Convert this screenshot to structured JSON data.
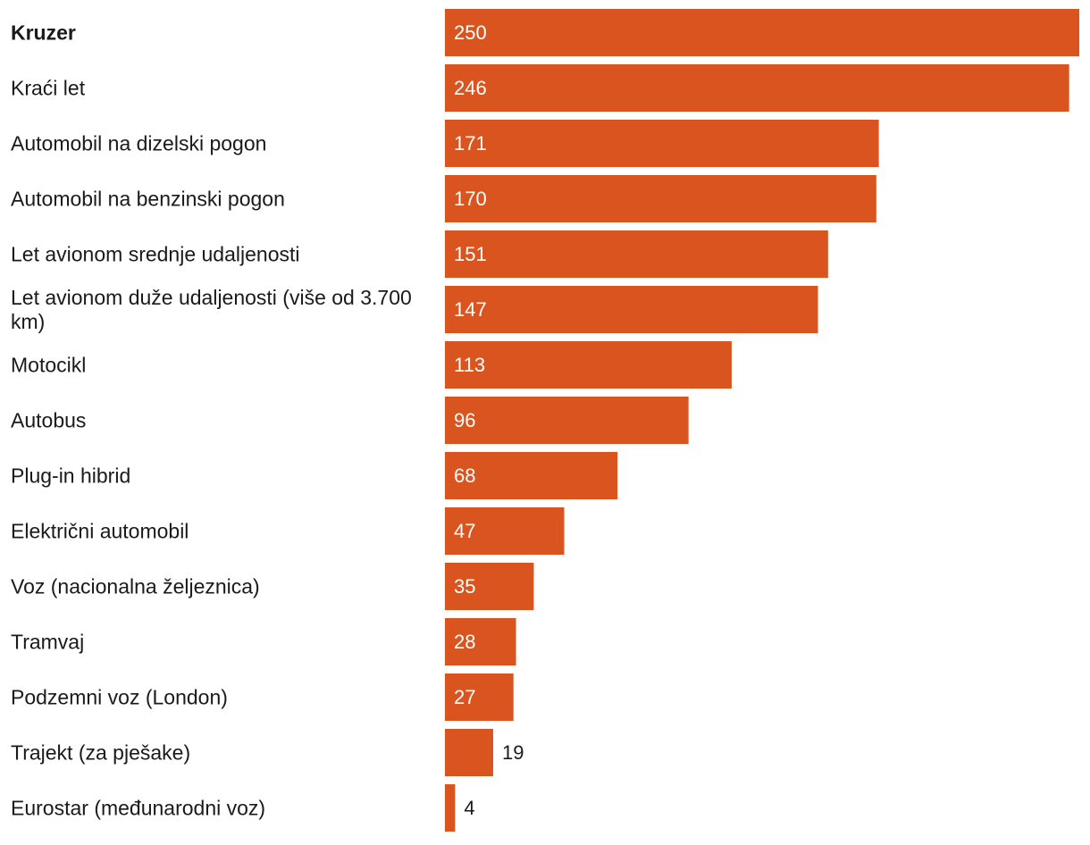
{
  "chart_data": {
    "type": "bar",
    "orientation": "horizontal",
    "title": "",
    "xlabel": "",
    "ylabel": "",
    "xlim": [
      0,
      250
    ],
    "grid": false,
    "bar_color": "#d9541e",
    "inside_label_color": "#ffffff",
    "outside_label_color": "#1a1a1a",
    "highlighted_category": "Kruzer",
    "categories": [
      "Kruzer",
      "Kraći let",
      "Automobil na dizelski pogon",
      "Automobil na benzinski pogon",
      "Let avionom srednje udaljenosti",
      "Let avionom duže udaljenosti (više od 3.700 km)",
      "Motocikl",
      "Autobus",
      "Plug-in hibrid",
      "Električni automobil",
      "Voz (nacionalna željeznica)",
      "Tramvaj",
      "Podzemni voz (London)",
      "Trajekt (za pješake)",
      "Eurostar (međunarodni voz)"
    ],
    "values": [
      250,
      246,
      171,
      170,
      151,
      147,
      113,
      96,
      68,
      47,
      35,
      28,
      27,
      19,
      4
    ]
  }
}
